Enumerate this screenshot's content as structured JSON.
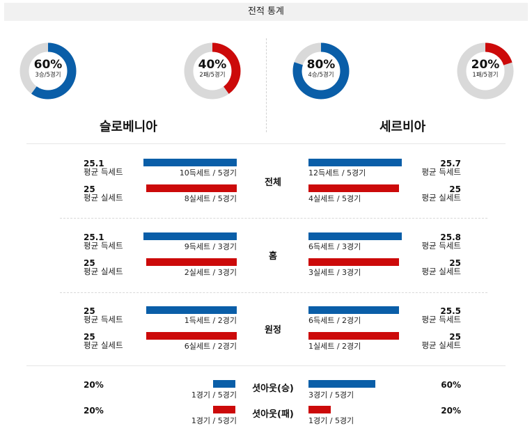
{
  "title": "전적 통계",
  "colors": {
    "blue": "#0a5ea8",
    "red": "#cc0a0a",
    "track": "#d9d9d9"
  },
  "teams": {
    "left": "슬로베니아",
    "right": "세르비아"
  },
  "donuts": [
    {
      "pct": "60%",
      "sub": "3승/5경기",
      "fraction": 0.6,
      "color": "blue"
    },
    {
      "pct": "40%",
      "sub": "2패/5경기",
      "fraction": 0.4,
      "color": "red"
    },
    {
      "pct": "80%",
      "sub": "4승/5경기",
      "fraction": 0.8,
      "color": "blue"
    },
    {
      "pct": "20%",
      "sub": "1패/5경기",
      "fraction": 0.2,
      "color": "red"
    }
  ],
  "sections": [
    {
      "name": "전체",
      "rows": [
        {
          "left_val": "25.1",
          "left_lbl": "평균 득세트",
          "left_cap": "10득세트 / 5경기",
          "left_frac": 1.0,
          "right_val": "25.7",
          "right_lbl": "평균 득세트",
          "right_cap": "12득세트 / 5경기",
          "right_frac": 1.0,
          "color": "blue"
        },
        {
          "left_val": "25",
          "left_lbl": "평균 실세트",
          "left_cap": "8실세트 / 5경기",
          "left_frac": 0.97,
          "right_val": "25",
          "right_lbl": "평균 실세트",
          "right_cap": "4실세트 / 5경기",
          "right_frac": 0.97,
          "color": "red"
        }
      ]
    },
    {
      "name": "홈",
      "rows": [
        {
          "left_val": "25.1",
          "left_lbl": "평균 득세트",
          "left_cap": "9득세트 / 3경기",
          "left_frac": 1.0,
          "right_val": "25.8",
          "right_lbl": "평균 득세트",
          "right_cap": "6득세트 / 3경기",
          "right_frac": 1.0,
          "color": "blue"
        },
        {
          "left_val": "25",
          "left_lbl": "평균 실세트",
          "left_cap": "2실세트 / 3경기",
          "left_frac": 0.97,
          "right_val": "25",
          "right_lbl": "평균 실세트",
          "right_cap": "3실세트 / 3경기",
          "right_frac": 0.97,
          "color": "red"
        }
      ]
    },
    {
      "name": "원정",
      "rows": [
        {
          "left_val": "25",
          "left_lbl": "평균 득세트",
          "left_cap": "1득세트 / 2경기",
          "left_frac": 0.97,
          "right_val": "25.5",
          "right_lbl": "평균 득세트",
          "right_cap": "6득세트 / 2경기",
          "right_frac": 0.97,
          "color": "blue"
        },
        {
          "left_val": "25",
          "left_lbl": "평균 실세트",
          "left_cap": "6실세트 / 2경기",
          "left_frac": 0.97,
          "right_val": "25",
          "right_lbl": "평균 실세트",
          "right_cap": "1실세트 / 2경기",
          "right_frac": 0.97,
          "color": "red"
        }
      ]
    }
  ],
  "setout": [
    {
      "name": "셧아웃(승)",
      "left_val": "20%",
      "left_cap": "1경기 / 5경기",
      "left_frac": 0.2,
      "right_val": "60%",
      "right_cap": "3경기 / 5경기",
      "right_frac": 0.6,
      "color": "blue"
    },
    {
      "name": "셧아웃(패)",
      "left_val": "20%",
      "left_cap": "1경기 / 5경기",
      "left_frac": 0.2,
      "right_val": "20%",
      "right_cap": "1경기 / 5경기",
      "right_frac": 0.2,
      "color": "red"
    }
  ]
}
